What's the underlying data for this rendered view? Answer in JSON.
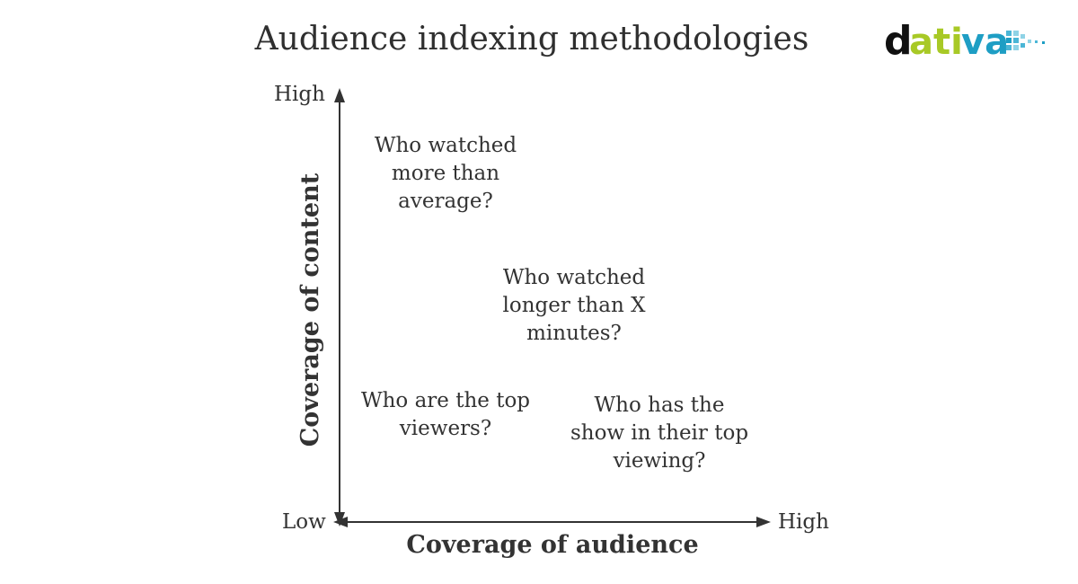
{
  "title": "Audience indexing methodologies",
  "logo": {
    "text_dark": "d",
    "text_green": "ati",
    "text_blue": "va",
    "colors": {
      "dark": "#111111",
      "green": "#a8c926",
      "blue": "#1e9ec4",
      "pixel_light": "#8fd3e6",
      "pixel_mid": "#4bb6d6"
    }
  },
  "axes": {
    "y_title": "Coverage of content",
    "x_title": "Coverage of audience",
    "y_high": "High",
    "y_low": "Low",
    "x_high": "High"
  },
  "quadrants": [
    {
      "id": "more-than-average",
      "text": "Who watched\nmore than\naverage?"
    },
    {
      "id": "longer-than-x",
      "text": "Who watched\nlonger than X\nminutes?"
    },
    {
      "id": "top-viewers",
      "text": "Who are the top\nviewers?"
    },
    {
      "id": "top-viewing",
      "text": "Who has the\nshow in their top\nviewing?"
    }
  ],
  "colors": {
    "text": "#333333",
    "axis": "#333333",
    "background": "#ffffff"
  }
}
